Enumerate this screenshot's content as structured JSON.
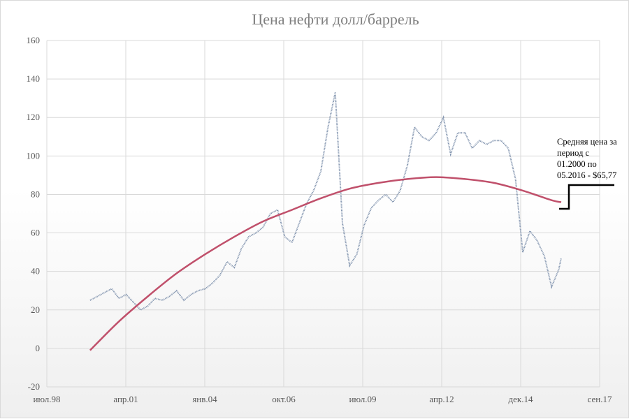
{
  "chart_data": {
    "type": "line",
    "title": "Цена нефти долл/баррель",
    "xlabel": "",
    "ylabel": "",
    "ylim": [
      -20,
      160
    ],
    "yticks": [
      "-20",
      "0",
      "20",
      "40",
      "60",
      "80",
      "100",
      "120",
      "140",
      "160"
    ],
    "xlim": [
      "1998-07",
      "2017-09"
    ],
    "xticks": [
      "июл.98",
      "апр.01",
      "янв.04",
      "окт.06",
      "июл.09",
      "апр.12",
      "дек.14",
      "сен.17"
    ],
    "grid": true,
    "legend": "none",
    "series": [
      {
        "kind": "price",
        "color": "#8496b0",
        "x": [
          "2000-01",
          "2000-04",
          "2000-07",
          "2000-10",
          "2001-01",
          "2001-04",
          "2001-07",
          "2001-10",
          "2002-01",
          "2002-04",
          "2002-07",
          "2002-10",
          "2003-01",
          "2003-04",
          "2003-07",
          "2003-10",
          "2004-01",
          "2004-04",
          "2004-07",
          "2004-10",
          "2005-01",
          "2005-04",
          "2005-07",
          "2005-10",
          "2006-01",
          "2006-04",
          "2006-07",
          "2006-10",
          "2007-01",
          "2007-04",
          "2007-07",
          "2007-10",
          "2008-01",
          "2008-04",
          "2008-07",
          "2008-10",
          "2009-01",
          "2009-04",
          "2009-07",
          "2009-10",
          "2010-01",
          "2010-04",
          "2010-07",
          "2010-10",
          "2011-01",
          "2011-04",
          "2011-07",
          "2011-10",
          "2012-01",
          "2012-04",
          "2012-07",
          "2012-10",
          "2013-01",
          "2013-04",
          "2013-07",
          "2013-10",
          "2014-01",
          "2014-04",
          "2014-07",
          "2014-10",
          "2015-01",
          "2015-04",
          "2015-07",
          "2015-10",
          "2016-01",
          "2016-04",
          "2016-05"
        ],
        "values": [
          25,
          27,
          29,
          31,
          26,
          28,
          24,
          20,
          22,
          26,
          25,
          27,
          30,
          25,
          28,
          30,
          31,
          34,
          38,
          45,
          42,
          52,
          58,
          60,
          63,
          70,
          72,
          58,
          55,
          65,
          75,
          82,
          92,
          115,
          133,
          65,
          43,
          49,
          64,
          73,
          77,
          80,
          76,
          82,
          95,
          115,
          110,
          108,
          112,
          120,
          101,
          112,
          112,
          104,
          108,
          106,
          108,
          108,
          104,
          88,
          50,
          61,
          56,
          48,
          32,
          41,
          47
        ]
      },
      {
        "kind": "trend",
        "color": "#c0506b",
        "x": [
          "2000-01",
          "2001-01",
          "2002-01",
          "2003-01",
          "2004-01",
          "2005-01",
          "2006-01",
          "2007-01",
          "2008-01",
          "2009-01",
          "2010-01",
          "2011-01",
          "2012-01",
          "2013-01",
          "2014-01",
          "2015-01",
          "2016-01",
          "2016-05"
        ],
        "values": [
          -1,
          14,
          27,
          39,
          49,
          58,
          66,
          72,
          78,
          83,
          86,
          88,
          89,
          88,
          86,
          82,
          77,
          76
        ]
      }
    ],
    "annotation": {
      "lines": [
        "Средняя цена за",
        "период с",
        "01.2000 по",
        "05.2016 - $65,77"
      ]
    }
  }
}
